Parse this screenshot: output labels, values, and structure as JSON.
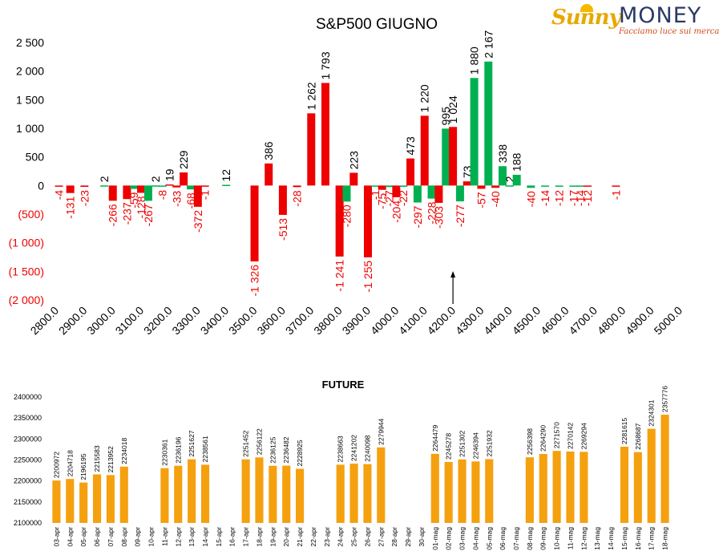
{
  "brand": {
    "name_part1": "Sunny",
    "name_part2": "MONEY",
    "tagline": "Facciamo luce sui mercati"
  },
  "colors": {
    "positive": "#00b050",
    "negative": "#ee0000",
    "future_bar": "#f5a00f",
    "text": "#000000"
  },
  "chart_data": [
    {
      "type": "bar",
      "title": "S&P500 GIUGNO",
      "ylim": [
        -2000,
        2500
      ],
      "yticks": [
        {
          "value": 2500,
          "label": "2 500"
        },
        {
          "value": 2000,
          "label": "2 000"
        },
        {
          "value": 1500,
          "label": "1 500"
        },
        {
          "value": 1000,
          "label": "1 000"
        },
        {
          "value": 500,
          "label": "500"
        },
        {
          "value": 0,
          "label": "0"
        },
        {
          "value": -500,
          "label": "(500)"
        },
        {
          "value": -1000,
          "label": "(1 000)"
        },
        {
          "value": -1500,
          "label": "(1 500)"
        },
        {
          "value": -2000,
          "label": "(2 000)"
        }
      ],
      "xlim": [
        2800,
        5000
      ],
      "xticks": [
        "2800.0",
        "2900.0",
        "3000.0",
        "3100.0",
        "3200.0",
        "3300.0",
        "3400.0",
        "3500.0",
        "3600.0",
        "3700.0",
        "3800.0",
        "3900.0",
        "4000.0",
        "4100.0",
        "4200.0",
        "4300.0",
        "4400.0",
        "4500.0",
        "4600.0",
        "4700.0",
        "4800.0",
        "4900.0",
        "5000.0"
      ],
      "arrow_at_x": 4200,
      "bars": [
        {
          "x": 2810,
          "value": -4,
          "color": "red",
          "label": "-4"
        },
        {
          "x": 2850,
          "value": -131,
          "color": "red",
          "label": "-131"
        },
        {
          "x": 2900,
          "value": -23,
          "color": "red",
          "label": "-23"
        },
        {
          "x": 2970,
          "value": 2,
          "color": "green",
          "label": "2"
        },
        {
          "x": 3000,
          "value": -266,
          "color": "red",
          "label": "-266"
        },
        {
          "x": 3050,
          "value": -237,
          "color": "red",
          "label": "-237"
        },
        {
          "x": 3075,
          "value": -59,
          "color": "green",
          "label": "-59"
        },
        {
          "x": 3100,
          "value": -128,
          "color": "red",
          "label": "-128"
        },
        {
          "x": 3125,
          "value": -267,
          "color": "green",
          "label": "-267"
        },
        {
          "x": 3150,
          "value": 2,
          "color": "green",
          "label": "2"
        },
        {
          "x": 3175,
          "value": -8,
          "color": "green",
          "label": "-8"
        },
        {
          "x": 3200,
          "value": 19,
          "color": "red",
          "label": "19"
        },
        {
          "x": 3225,
          "value": -33,
          "color": "red",
          "label": "-33"
        },
        {
          "x": 3250,
          "value": 229,
          "color": "red",
          "label": "229"
        },
        {
          "x": 3275,
          "value": -68,
          "color": "green",
          "label": "-68"
        },
        {
          "x": 3300,
          "value": -372,
          "color": "red",
          "label": "-372"
        },
        {
          "x": 3325,
          "value": -1,
          "color": "red",
          "label": "-1"
        },
        {
          "x": 3400,
          "value": 12,
          "color": "green",
          "label": "12"
        },
        {
          "x": 3500,
          "value": -1326,
          "color": "red",
          "label": "-1 326"
        },
        {
          "x": 3550,
          "value": 386,
          "color": "red",
          "label": "386"
        },
        {
          "x": 3600,
          "value": -513,
          "color": "red",
          "label": "-513"
        },
        {
          "x": 3650,
          "value": -28,
          "color": "red",
          "label": "-28"
        },
        {
          "x": 3700,
          "value": 1262,
          "color": "red",
          "label": "1 262"
        },
        {
          "x": 3750,
          "value": 1793,
          "color": "red",
          "label": "1 793"
        },
        {
          "x": 3800,
          "value": -1241,
          "color": "red",
          "label": "-1 241"
        },
        {
          "x": 3825,
          "value": -280,
          "color": "green",
          "label": "-280"
        },
        {
          "x": 3850,
          "value": 223,
          "color": "red",
          "label": "223"
        },
        {
          "x": 3900,
          "value": -1255,
          "color": "red",
          "label": "-1 255"
        },
        {
          "x": 3925,
          "value": -1,
          "color": "green",
          "label": "-1"
        },
        {
          "x": 3950,
          "value": -75,
          "color": "red",
          "label": "-75"
        },
        {
          "x": 3975,
          "value": -27,
          "color": "green",
          "label": "-27"
        },
        {
          "x": 4000,
          "value": -204,
          "color": "red",
          "label": "-204"
        },
        {
          "x": 4025,
          "value": -22,
          "color": "green",
          "label": "-22"
        },
        {
          "x": 4050,
          "value": 473,
          "color": "red",
          "label": "473"
        },
        {
          "x": 4075,
          "value": -297,
          "color": "green",
          "label": "-297"
        },
        {
          "x": 4100,
          "value": 1220,
          "color": "red",
          "label": "1 220"
        },
        {
          "x": 4125,
          "value": -228,
          "color": "green",
          "label": "-228"
        },
        {
          "x": 4150,
          "value": -303,
          "color": "red",
          "label": "-303"
        },
        {
          "x": 4175,
          "value": 995,
          "color": "green",
          "label": "995"
        },
        {
          "x": 4200,
          "value": 1024,
          "color": "red",
          "label": "1 024"
        },
        {
          "x": 4225,
          "value": -277,
          "color": "green",
          "label": "-277"
        },
        {
          "x": 4250,
          "value": 73,
          "color": "red",
          "label": "73"
        },
        {
          "x": 4275,
          "value": 1880,
          "color": "green",
          "label": "1 880"
        },
        {
          "x": 4300,
          "value": -57,
          "color": "red",
          "label": "-57"
        },
        {
          "x": 4325,
          "value": 2167,
          "color": "green",
          "label": "2 167"
        },
        {
          "x": 4350,
          "value": -40,
          "color": "red",
          "label": "-40"
        },
        {
          "x": 4375,
          "value": 338,
          "color": "green",
          "label": "338"
        },
        {
          "x": 4400,
          "value": 2,
          "color": "green",
          "label": "2"
        },
        {
          "x": 4425,
          "value": 188,
          "color": "green",
          "label": "188"
        },
        {
          "x": 4475,
          "value": -40,
          "color": "green",
          "label": "-40"
        },
        {
          "x": 4525,
          "value": -14,
          "color": "green",
          "label": "-14"
        },
        {
          "x": 4575,
          "value": -12,
          "color": "green",
          "label": "-12"
        },
        {
          "x": 4625,
          "value": -17,
          "color": "green",
          "label": "-17"
        },
        {
          "x": 4650,
          "value": -14,
          "color": "green",
          "label": "-14"
        },
        {
          "x": 4675,
          "value": -12,
          "color": "red",
          "label": "-12"
        },
        {
          "x": 4775,
          "value": -1,
          "color": "red",
          "label": "-1"
        }
      ]
    },
    {
      "type": "bar",
      "title": "FUTURE",
      "ylim": [
        2100000,
        2400000
      ],
      "yticks": [
        "2100000",
        "2150000",
        "2200000",
        "2250000",
        "2300000",
        "2350000",
        "2400000"
      ],
      "categories": [
        "03-apr",
        "04-apr",
        "05-apr",
        "06-apr",
        "07-apr",
        "08-apr",
        "09-apr",
        "10-apr",
        "11-apr",
        "12-apr",
        "13-apr",
        "14-apr",
        "15-apr",
        "16-apr",
        "17-apr",
        "18-apr",
        "19-apr",
        "20-apr",
        "21-apr",
        "22-apr",
        "23-apr",
        "24-apr",
        "25-apr",
        "26-apr",
        "27-apr",
        "28-apr",
        "29-apr",
        "30-apr",
        "01-mag",
        "02-mag",
        "03-mag",
        "04-mag",
        "05-mag",
        "06-mag",
        "07-mag",
        "08-mag",
        "09-mag",
        "10-mag",
        "11-mag",
        "12-mag",
        "13-mag",
        "14-mag",
        "15-mag",
        "16-mag",
        "17-mag",
        "18-mag"
      ],
      "values": [
        2200972,
        2204718,
        2196195,
        2215583,
        2213952,
        2234018,
        null,
        null,
        2230361,
        2236196,
        2251627,
        2238561,
        null,
        null,
        2251452,
        2256122,
        2236125,
        2236482,
        2228925,
        null,
        null,
        2238663,
        2241202,
        2240098,
        2279944,
        null,
        null,
        null,
        2264479,
        2245278,
        2251302,
        2246394,
        2251932,
        null,
        null,
        2256398,
        2264290,
        2271570,
        2270142,
        2269294,
        null,
        null,
        2281615,
        2268687,
        2324301,
        2357776
      ]
    }
  ]
}
